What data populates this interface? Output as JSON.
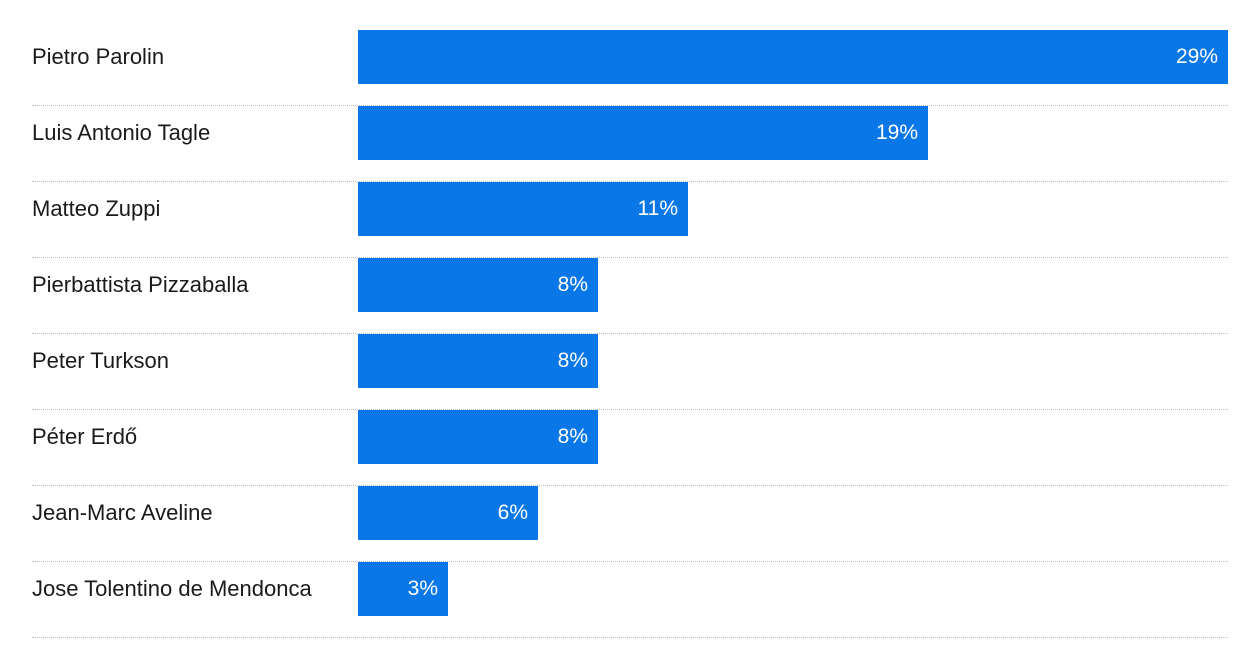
{
  "chart_data": {
    "type": "bar",
    "orientation": "horizontal",
    "categories": [
      "Pietro Parolin",
      "Luis Antonio Tagle",
      "Matteo Zuppi",
      "Pierbattista Pizzaballa",
      "Peter Turkson",
      "Péter Erdő",
      "Jean-Marc Aveline",
      "Jose Tolentino de Mendonca"
    ],
    "values": [
      29,
      19,
      11,
      8,
      8,
      8,
      6,
      3
    ],
    "value_labels": [
      "29%",
      "19%",
      "11%",
      "8%",
      "8%",
      "8%",
      "6%",
      "3%"
    ],
    "unit": "%",
    "xlim": [
      0,
      29
    ],
    "bar_color": "#0a77e8",
    "grid": false,
    "legend": "none"
  }
}
